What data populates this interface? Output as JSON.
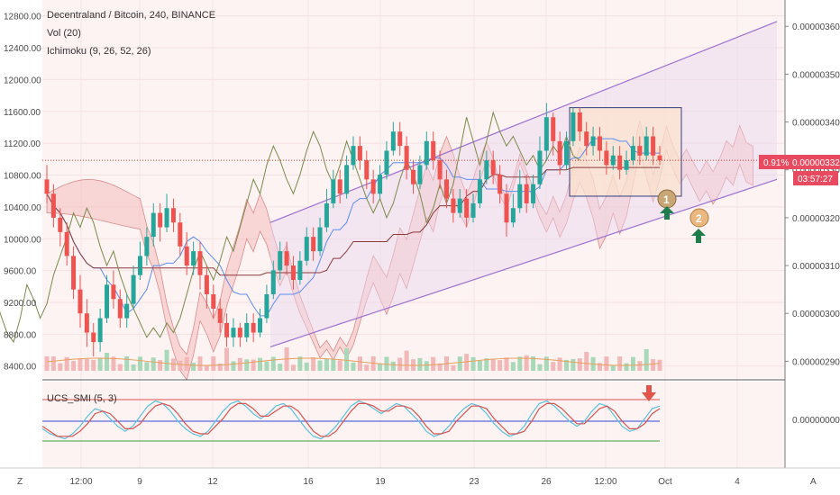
{
  "legend": {
    "symbol_line": "Decentraland / Bitcoin, 240, BINANCE",
    "vol_line": "Vol (20)",
    "ichimoku_line": "Ichimoku (9, 26, 52, 26)",
    "indicator_line": "UCS_SMI (5, 3)"
  },
  "price_badges": {
    "change_pct": "0.91%",
    "last_price": "0.00000332",
    "countdown": "03:57:27"
  },
  "markers": {
    "first": "1",
    "second": "2"
  },
  "footer": {
    "left_button": "Z",
    "right_button": "A"
  },
  "colors": {
    "up_candle": "#26a69a",
    "down_candle": "#ef5350",
    "channel": "#9c6fd1",
    "cloud": "#f4b4b4",
    "price_badge": "#e84a5f"
  },
  "chart_data": [
    {
      "type": "candlestick",
      "title": "Decentraland / Bitcoin, 240, BINANCE",
      "left_axis_ticks": [
        "12800.00",
        "12400.00",
        "12000.00",
        "11600.00",
        "11200.00",
        "10800.00",
        "10400.00",
        "10000.00",
        "9600.00",
        "9200.00",
        "8800.00",
        "8400.00"
      ],
      "left_axis_range": [
        8250,
        13000
      ],
      "right_axis_ticks": [
        "0.00000360",
        "0.00000350",
        "0.00000340",
        "0.00000330",
        "0.00000320",
        "0.00000310",
        "0.00000300",
        "0.00000290"
      ],
      "right_axis_range": [
        2.865e-06,
        3.655e-06
      ],
      "x_ticks": [
        "12:00",
        "9",
        "12",
        "16",
        "19",
        "23",
        "26",
        "12:00",
        "Oct",
        "4"
      ],
      "last_price": 3.32e-06,
      "candles_right_axis": [
        [
          3.28,
          3.25,
          3.31,
          3.23
        ],
        [
          3.25,
          3.2,
          3.27,
          3.18
        ],
        [
          3.2,
          3.17,
          3.22,
          3.14
        ],
        [
          3.17,
          3.12,
          3.19,
          3.1
        ],
        [
          3.12,
          3.05,
          3.14,
          3.03
        ],
        [
          3.05,
          3.0,
          3.08,
          2.97
        ],
        [
          3.0,
          2.96,
          3.03,
          2.93
        ],
        [
          2.96,
          2.94,
          2.98,
          2.91
        ],
        [
          2.94,
          2.99,
          3.01,
          2.92
        ],
        [
          2.99,
          3.06,
          3.08,
          2.98
        ],
        [
          3.06,
          3.03,
          3.09,
          3.01
        ],
        [
          3.03,
          2.99,
          3.05,
          2.97
        ],
        [
          2.99,
          3.02,
          3.04,
          2.97
        ],
        [
          3.02,
          3.08,
          3.1,
          3.01
        ],
        [
          3.08,
          3.12,
          3.15,
          3.07
        ],
        [
          3.12,
          3.16,
          3.18,
          3.1
        ],
        [
          3.16,
          3.21,
          3.23,
          3.14
        ],
        [
          3.21,
          3.18,
          3.23,
          3.15
        ],
        [
          3.18,
          3.22,
          3.25,
          3.17
        ],
        [
          3.22,
          3.19,
          3.24,
          3.17
        ],
        [
          3.19,
          3.14,
          3.21,
          3.12
        ],
        [
          3.14,
          3.1,
          3.17,
          3.08
        ],
        [
          3.1,
          3.13,
          3.15,
          3.08
        ],
        [
          3.13,
          3.08,
          3.15,
          3.05
        ],
        [
          3.08,
          3.04,
          3.1,
          3.01
        ],
        [
          3.04,
          3.01,
          3.06,
          2.99
        ],
        [
          3.01,
          2.98,
          3.03,
          2.96
        ],
        [
          2.98,
          2.95,
          3.0,
          2.93
        ],
        [
          2.95,
          2.97,
          2.99,
          2.93
        ],
        [
          2.97,
          2.95,
          2.98,
          2.93
        ],
        [
          2.95,
          2.98,
          3.0,
          2.94
        ],
        [
          2.98,
          2.96,
          3.0,
          2.94
        ],
        [
          2.96,
          2.99,
          3.01,
          2.95
        ],
        [
          2.99,
          3.04,
          3.06,
          2.98
        ],
        [
          3.04,
          3.09,
          3.11,
          3.03
        ],
        [
          3.09,
          3.13,
          3.15,
          3.07
        ],
        [
          3.13,
          3.1,
          3.15,
          3.08
        ],
        [
          3.1,
          3.07,
          3.12,
          3.05
        ],
        [
          3.07,
          3.11,
          3.13,
          3.06
        ],
        [
          3.11,
          3.16,
          3.18,
          3.1
        ],
        [
          3.16,
          3.13,
          3.18,
          3.11
        ],
        [
          3.13,
          3.18,
          3.2,
          3.12
        ],
        [
          3.18,
          3.23,
          3.26,
          3.17
        ],
        [
          3.23,
          3.28,
          3.3,
          3.22
        ],
        [
          3.28,
          3.25,
          3.3,
          3.23
        ],
        [
          3.25,
          3.31,
          3.33,
          3.24
        ],
        [
          3.31,
          3.35,
          3.37,
          3.3
        ],
        [
          3.35,
          3.32,
          3.37,
          3.3
        ],
        [
          3.32,
          3.28,
          3.34,
          3.26
        ],
        [
          3.28,
          3.25,
          3.3,
          3.23
        ],
        [
          3.25,
          3.29,
          3.31,
          3.24
        ],
        [
          3.29,
          3.34,
          3.36,
          3.28
        ],
        [
          3.34,
          3.38,
          3.4,
          3.33
        ],
        [
          3.38,
          3.35,
          3.4,
          3.33
        ],
        [
          3.35,
          3.3,
          3.37,
          3.28
        ],
        [
          3.3,
          3.27,
          3.32,
          3.25
        ],
        [
          3.27,
          3.31,
          3.33,
          3.26
        ],
        [
          3.31,
          3.36,
          3.38,
          3.3
        ],
        [
          3.36,
          3.32,
          3.38,
          3.3
        ],
        [
          3.32,
          3.28,
          3.34,
          3.26
        ],
        [
          3.28,
          3.24,
          3.3,
          3.22
        ],
        [
          3.24,
          3.21,
          3.26,
          3.19
        ],
        [
          3.21,
          3.24,
          3.26,
          3.2
        ],
        [
          3.24,
          3.2,
          3.26,
          3.18
        ],
        [
          3.2,
          3.23,
          3.25,
          3.19
        ],
        [
          3.23,
          3.28,
          3.3,
          3.22
        ],
        [
          3.28,
          3.32,
          3.34,
          3.27
        ],
        [
          3.32,
          3.29,
          3.34,
          3.27
        ],
        [
          3.29,
          3.25,
          3.31,
          3.23
        ],
        [
          3.25,
          3.19,
          3.27,
          3.16
        ],
        [
          3.19,
          3.22,
          3.25,
          3.18
        ],
        [
          3.22,
          3.27,
          3.3,
          3.21
        ],
        [
          3.27,
          3.23,
          3.29,
          3.21
        ],
        [
          3.23,
          3.27,
          3.29,
          3.22
        ],
        [
          3.27,
          3.34,
          3.37,
          3.26
        ],
        [
          3.34,
          3.41,
          3.44,
          3.32
        ],
        [
          3.41,
          3.36,
          3.42,
          3.33
        ],
        [
          3.36,
          3.31,
          3.38,
          3.29
        ],
        [
          3.31,
          3.36,
          3.38,
          3.3
        ],
        [
          3.36,
          3.42,
          3.43,
          3.35
        ],
        [
          3.42,
          3.38,
          3.43,
          3.36
        ],
        [
          3.38,
          3.35,
          3.4,
          3.33
        ],
        [
          3.35,
          3.37,
          3.39,
          3.33
        ],
        [
          3.37,
          3.34,
          3.39,
          3.32
        ],
        [
          3.34,
          3.31,
          3.36,
          3.29
        ],
        [
          3.31,
          3.33,
          3.35,
          3.3
        ],
        [
          3.33,
          3.3,
          3.35,
          3.28
        ],
        [
          3.3,
          3.32,
          3.34,
          3.29
        ],
        [
          3.32,
          3.35,
          3.37,
          3.31
        ],
        [
          3.35,
          3.33,
          3.37,
          3.31
        ],
        [
          3.33,
          3.37,
          3.39,
          3.32
        ],
        [
          3.37,
          3.33,
          3.39,
          3.31
        ],
        [
          3.33,
          3.32,
          3.35,
          3.31
        ]
      ]
    },
    {
      "type": "line",
      "title": "UCS_SMI (5, 3)",
      "reference_lines": [
        "upper",
        "zero",
        "lower"
      ],
      "right_axis_ticks": [
        "0.00000000"
      ],
      "series": [
        {
          "values": [
            -0.3,
            -0.5,
            -0.6,
            -0.7,
            -0.5,
            -0.2,
            0.2,
            0.5,
            0.4,
            0.1,
            -0.2,
            -0.4,
            -0.2,
            0.2,
            0.6,
            0.8,
            0.7,
            0.4,
            0.0,
            -0.3,
            -0.5,
            -0.6,
            -0.4,
            0.0,
            0.4,
            0.7,
            0.8,
            0.6,
            0.3,
            0.1,
            0.3,
            0.6,
            0.7,
            0.5,
            0.1,
            -0.3,
            -0.6,
            -0.7,
            -0.5,
            -0.2,
            0.2,
            0.6,
            0.8,
            0.7,
            0.5,
            0.3,
            0.5,
            0.7,
            0.6,
            0.3,
            0.0,
            -0.4,
            -0.6,
            -0.5,
            -0.2,
            0.2,
            0.5,
            0.7,
            0.6,
            0.3,
            -0.1,
            -0.4,
            -0.6,
            -0.5,
            -0.2,
            0.3,
            0.7,
            0.8,
            0.6,
            0.3,
            0.0,
            -0.2,
            0.0,
            0.4,
            0.7,
            0.6,
            0.2,
            -0.2,
            -0.4,
            -0.3,
            0.1,
            0.5,
            0.6
          ]
        },
        {
          "values": [
            -0.2,
            -0.4,
            -0.6,
            -0.6,
            -0.6,
            -0.4,
            -0.1,
            0.3,
            0.4,
            0.3,
            0.0,
            -0.3,
            -0.3,
            -0.1,
            0.3,
            0.6,
            0.7,
            0.6,
            0.3,
            -0.1,
            -0.4,
            -0.5,
            -0.5,
            -0.2,
            0.1,
            0.5,
            0.7,
            0.7,
            0.5,
            0.2,
            0.2,
            0.4,
            0.6,
            0.6,
            0.4,
            0.0,
            -0.4,
            -0.6,
            -0.6,
            -0.4,
            0.0,
            0.4,
            0.7,
            0.7,
            0.6,
            0.4,
            0.4,
            0.6,
            0.6,
            0.5,
            0.2,
            -0.2,
            -0.5,
            -0.5,
            -0.4,
            0.0,
            0.3,
            0.6,
            0.6,
            0.5,
            0.1,
            -0.2,
            -0.5,
            -0.5,
            -0.4,
            0.0,
            0.5,
            0.7,
            0.7,
            0.5,
            0.2,
            -0.1,
            -0.1,
            0.2,
            0.5,
            0.6,
            0.4,
            0.0,
            -0.3,
            -0.3,
            -0.1,
            0.3,
            0.5
          ]
        }
      ]
    }
  ]
}
